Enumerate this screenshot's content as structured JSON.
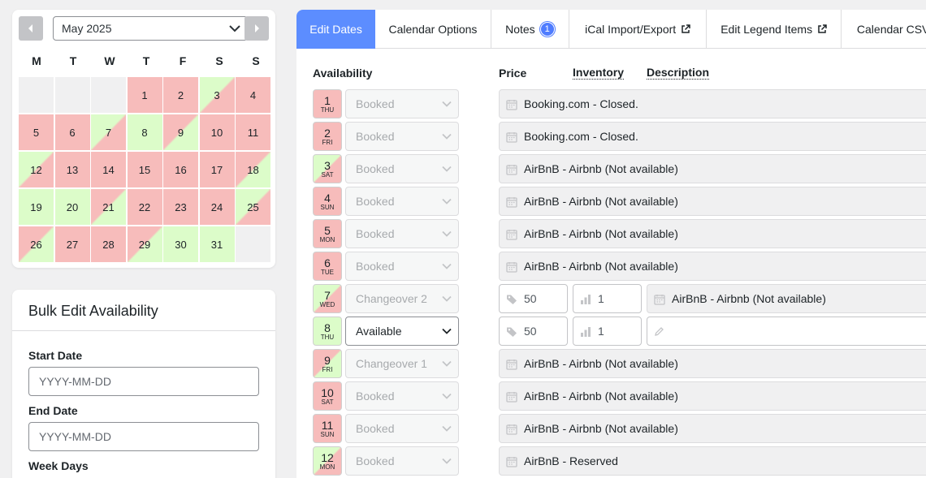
{
  "calendar": {
    "month_label": "May 2025",
    "weekdays": [
      "M",
      "T",
      "W",
      "T",
      "F",
      "S",
      "S"
    ],
    "days": [
      {
        "n": "",
        "s": "empty"
      },
      {
        "n": "",
        "s": "empty"
      },
      {
        "n": "",
        "s": "empty"
      },
      {
        "n": "1",
        "s": "booked"
      },
      {
        "n": "2",
        "s": "booked"
      },
      {
        "n": "3",
        "s": "co2"
      },
      {
        "n": "4",
        "s": "booked"
      },
      {
        "n": "5",
        "s": "booked"
      },
      {
        "n": "6",
        "s": "booked"
      },
      {
        "n": "7",
        "s": "co2"
      },
      {
        "n": "8",
        "s": "avail"
      },
      {
        "n": "9",
        "s": "co1"
      },
      {
        "n": "10",
        "s": "booked"
      },
      {
        "n": "11",
        "s": "booked"
      },
      {
        "n": "12",
        "s": "co2"
      },
      {
        "n": "13",
        "s": "booked"
      },
      {
        "n": "14",
        "s": "booked"
      },
      {
        "n": "15",
        "s": "booked"
      },
      {
        "n": "16",
        "s": "booked"
      },
      {
        "n": "17",
        "s": "booked"
      },
      {
        "n": "18",
        "s": "co1"
      },
      {
        "n": "19",
        "s": "avail"
      },
      {
        "n": "20",
        "s": "avail"
      },
      {
        "n": "21",
        "s": "co1"
      },
      {
        "n": "22",
        "s": "booked"
      },
      {
        "n": "23",
        "s": "booked"
      },
      {
        "n": "24",
        "s": "booked"
      },
      {
        "n": "25",
        "s": "co2"
      },
      {
        "n": "26",
        "s": "co1"
      },
      {
        "n": "27",
        "s": "booked"
      },
      {
        "n": "28",
        "s": "booked"
      },
      {
        "n": "29",
        "s": "co1"
      },
      {
        "n": "30",
        "s": "avail"
      },
      {
        "n": "31",
        "s": "avail"
      },
      {
        "n": "",
        "s": "empty"
      }
    ]
  },
  "bulk_edit": {
    "title": "Bulk Edit Availability",
    "start_label": "Start Date",
    "start_placeholder": "YYYY-MM-DD",
    "end_label": "End Date",
    "end_placeholder": "YYYY-MM-DD",
    "weekdays_label": "Week Days"
  },
  "tabs": [
    {
      "label": "Edit Dates",
      "active": true
    },
    {
      "label": "Calendar Options"
    },
    {
      "label": "Notes",
      "badge": "1"
    },
    {
      "label": "iCal Import/Export",
      "ext": true
    },
    {
      "label": "Edit Legend Items",
      "ext": true
    },
    {
      "label": "Calendar CSV"
    }
  ],
  "columns": {
    "availability": "Availability",
    "price": "Price",
    "inventory": "Inventory",
    "description": "Description"
  },
  "rows": [
    {
      "num": "1",
      "day": "THU",
      "state": "booked",
      "availability": "Booked",
      "description": "Booking.com - Closed."
    },
    {
      "num": "2",
      "day": "FRI",
      "state": "booked",
      "availability": "Booked",
      "description": "Booking.com - Closed."
    },
    {
      "num": "3",
      "day": "SAT",
      "state": "co2",
      "availability": "Booked",
      "description": "AirBnB - Airbnb (Not available)"
    },
    {
      "num": "4",
      "day": "SUN",
      "state": "booked",
      "availability": "Booked",
      "description": "AirBnB - Airbnb (Not available)"
    },
    {
      "num": "5",
      "day": "MON",
      "state": "booked",
      "availability": "Booked",
      "description": "AirBnB - Airbnb (Not available)"
    },
    {
      "num": "6",
      "day": "TUE",
      "state": "booked",
      "availability": "Booked",
      "description": "AirBnB - Airbnb (Not available)"
    },
    {
      "num": "7",
      "day": "WED",
      "state": "co2",
      "availability": "Changeover 2",
      "price": "50",
      "inventory": "1",
      "description": "AirBnB - Airbnb (Not available)"
    },
    {
      "num": "8",
      "day": "THU",
      "state": "avail",
      "availability": "Available",
      "enabled": true,
      "price": "50",
      "inventory": "1",
      "description": ""
    },
    {
      "num": "9",
      "day": "FRI",
      "state": "co1",
      "availability": "Changeover 1",
      "description": "AirBnB - Airbnb (Not available)"
    },
    {
      "num": "10",
      "day": "SAT",
      "state": "booked",
      "availability": "Booked",
      "description": "AirBnB - Airbnb (Not available)"
    },
    {
      "num": "11",
      "day": "SUN",
      "state": "booked",
      "availability": "Booked",
      "description": "AirBnB - Airbnb (Not available)"
    },
    {
      "num": "12",
      "day": "MON",
      "state": "co2",
      "availability": "Booked",
      "description": "AirBnB - Reserved"
    }
  ],
  "colors": {
    "booked": "#f7bcbb",
    "available": "#dcfcc9",
    "accent": "#5c8dff"
  },
  "icons": {
    "prev": "chevron-left-icon",
    "next": "chevron-right-icon",
    "select": "chevron-down-icon",
    "external": "external-link-icon",
    "price": "tag-icon",
    "inventory": "bar-chart-icon",
    "description": "calendar-icon",
    "edit": "pencil-icon"
  }
}
